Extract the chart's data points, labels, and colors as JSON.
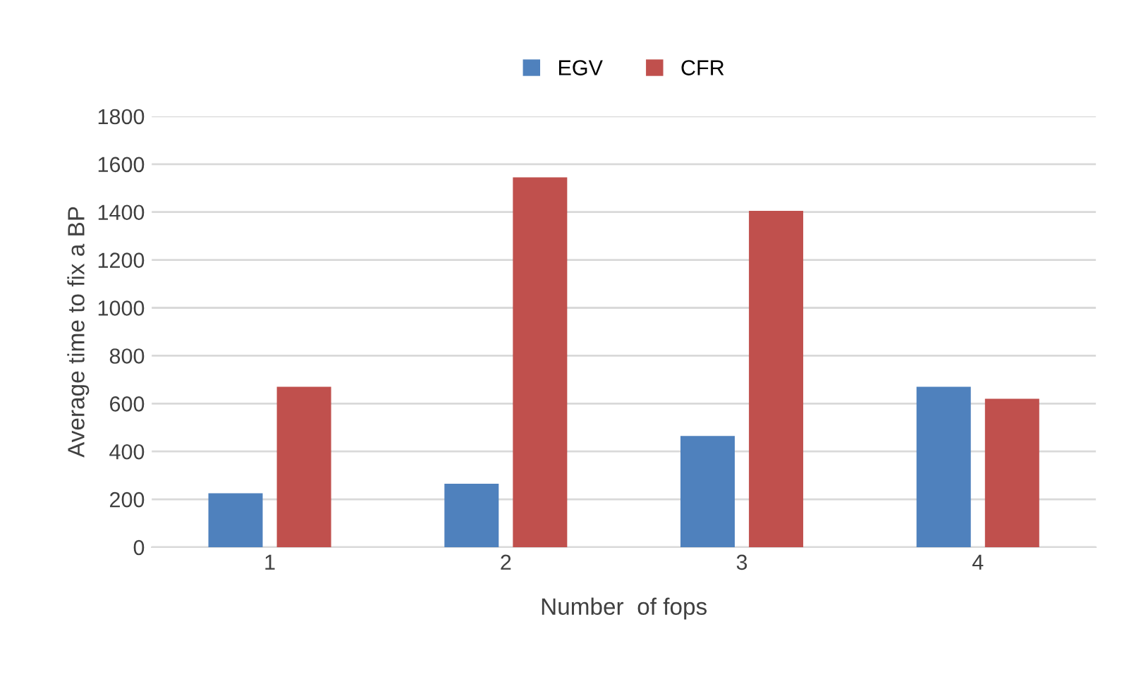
{
  "chart_data": {
    "type": "bar",
    "xlabel": "Number  of fops",
    "ylabel": "Average time to fix a BP",
    "categories": [
      "1",
      "2",
      "3",
      "4"
    ],
    "series": [
      {
        "name": "EGV",
        "color": "#4f81bd",
        "values": [
          225,
          265,
          465,
          670
        ]
      },
      {
        "name": "CFR",
        "color": "#c0504d",
        "values": [
          670,
          1545,
          1405,
          620
        ]
      }
    ],
    "ylim": [
      0,
      1800
    ],
    "yticks": [
      0,
      200,
      400,
      600,
      800,
      1000,
      1200,
      1400,
      1600,
      1800
    ],
    "grid": "y",
    "legend": "top"
  }
}
